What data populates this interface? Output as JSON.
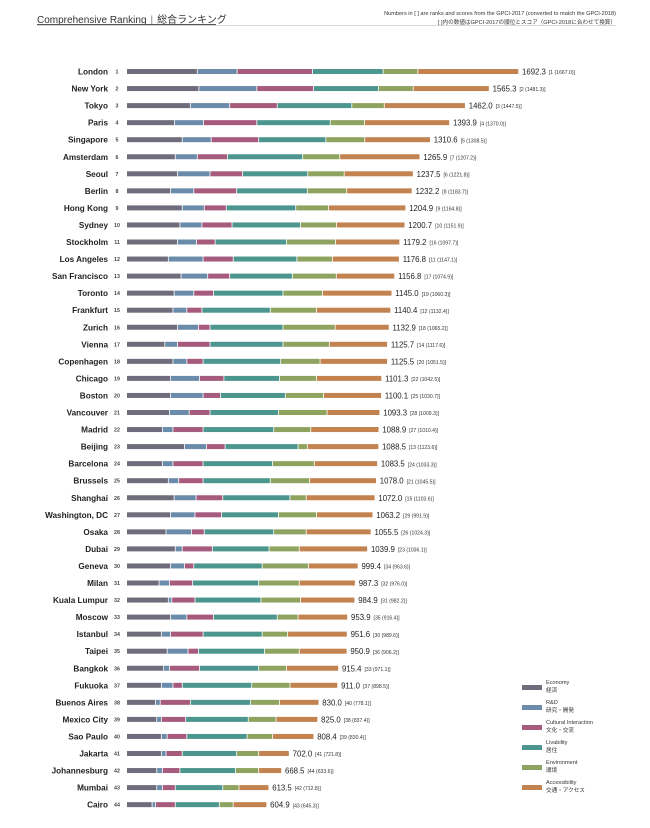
{
  "header": {
    "title_en": "Comprehensive Ranking",
    "title_jp": "総合ランキング",
    "note_line1": "Numbers in [ ] are ranks and scores from the GPCI-2017 (converted to match the GPCI-2018)",
    "note_line2": "[ ]内の数値はGPCI-2017の順位とスコア（GPCI-2018に合わせて換算）"
  },
  "chart_data": {
    "type": "bar",
    "stacked": true,
    "orientation": "horizontal",
    "xlim": [
      0,
      1800
    ],
    "grid": false,
    "legend_position": "bottom-right",
    "series": [
      {
        "name": "Economy 経済",
        "color": "#6f6d7b"
      },
      {
        "name": "R&D 研究・開発",
        "color": "#6a8ba9"
      },
      {
        "name": "Cultural Interaction 文化・交流",
        "color": "#a65a7c"
      },
      {
        "name": "Livability 居住",
        "color": "#4d968f"
      },
      {
        "name": "Environment 環境",
        "color": "#8fa360"
      },
      {
        "name": "Accessibility 交通・アクセス",
        "color": "#c28350"
      }
    ],
    "rows": [
      {
        "city": "London",
        "rank": "1",
        "score": "1692.3",
        "prev": "[1 (1667.0)]",
        "segments": [
          305,
          172,
          325,
          305,
          150,
          435
        ]
      },
      {
        "city": "New York",
        "rank": "2",
        "score": "1565.3",
        "prev": "[2 (1481.3)]",
        "segments": [
          312,
          250,
          245,
          280,
          150,
          328
        ]
      },
      {
        "city": "Tokyo",
        "rank": "3",
        "score": "1462.0",
        "prev": "[3 (1447.5)]",
        "segments": [
          275,
          170,
          205,
          322,
          140,
          350
        ]
      },
      {
        "city": "Paris",
        "rank": "4",
        "score": "1393.9",
        "prev": "[4 (1370.0)]",
        "segments": [
          207,
          125,
          230,
          317,
          148,
          367
        ]
      },
      {
        "city": "Singapore",
        "rank": "5",
        "score": "1310.6",
        "prev": "[5 (1308.5)]",
        "segments": [
          240,
          125,
          205,
          290,
          168,
          283
        ]
      },
      {
        "city": "Amsterdam",
        "rank": "6",
        "score": "1265.9",
        "prev": "[7 (1207.2)]",
        "segments": [
          210,
          95,
          130,
          325,
          160,
          346
        ]
      },
      {
        "city": "Seoul",
        "rank": "7",
        "score": "1237.5",
        "prev": "[6 (1221.8)]",
        "segments": [
          220,
          140,
          140,
          282,
          157,
          298
        ]
      },
      {
        "city": "Berlin",
        "rank": "8",
        "score": "1232.2",
        "prev": "[8 (1183.7)]",
        "segments": [
          190,
          100,
          185,
          305,
          170,
          282
        ]
      },
      {
        "city": "Hong Kong",
        "rank": "9",
        "score": "1204.9",
        "prev": "[9 (1164.8)]",
        "segments": [
          240,
          95,
          95,
          300,
          142,
          333
        ]
      },
      {
        "city": "Sydney",
        "rank": "10",
        "score": "1200.7",
        "prev": "[10 (1151.9)]",
        "segments": [
          230,
          95,
          130,
          295,
          156,
          295
        ]
      },
      {
        "city": "Stockholm",
        "rank": "11",
        "score": "1179.2",
        "prev": "[16 (1097.7)]",
        "segments": [
          220,
          82,
          80,
          308,
          212,
          277
        ]
      },
      {
        "city": "Los Angeles",
        "rank": "12",
        "score": "1176.8",
        "prev": "[11 (1147.1)]",
        "segments": [
          180,
          150,
          130,
          275,
          153,
          289
        ]
      },
      {
        "city": "San Francisco",
        "rank": "13",
        "score": "1156.8",
        "prev": "[17 (1074.9)]",
        "segments": [
          235,
          115,
          95,
          270,
          190,
          252
        ]
      },
      {
        "city": "Toronto",
        "rank": "14",
        "score": "1145.0",
        "prev": "[19 (1060.3)]",
        "segments": [
          205,
          85,
          85,
          300,
          170,
          300
        ]
      },
      {
        "city": "Frankfurt",
        "rank": "15",
        "score": "1140.4",
        "prev": "[12 (1132.4)]",
        "segments": [
          200,
          60,
          65,
          295,
          200,
          320
        ]
      },
      {
        "city": "Zurich",
        "rank": "16",
        "score": "1132.9",
        "prev": "[18 (1065.2)]",
        "segments": [
          220,
          90,
          50,
          315,
          225,
          233
        ]
      },
      {
        "city": "Vienna",
        "rank": "17",
        "score": "1125.7",
        "prev": "[14 (1117.6)]",
        "segments": [
          165,
          55,
          140,
          315,
          200,
          251
        ]
      },
      {
        "city": "Copenhagen",
        "rank": "18",
        "score": "1125.5",
        "prev": "[20 (1051.5)]",
        "segments": [
          200,
          60,
          70,
          335,
          170,
          291
        ]
      },
      {
        "city": "Chicago",
        "rank": "19",
        "score": "1101.3",
        "prev": "[22 (1042.5)]",
        "segments": [
          190,
          125,
          105,
          240,
          160,
          281
        ]
      },
      {
        "city": "Boston",
        "rank": "20",
        "score": "1100.1",
        "prev": "[25 (1030.7)]",
        "segments": [
          190,
          140,
          75,
          280,
          165,
          250
        ]
      },
      {
        "city": "Vancouver",
        "rank": "21",
        "score": "1093.3",
        "prev": "[28 (1009.3)]",
        "segments": [
          185,
          85,
          90,
          295,
          210,
          228
        ]
      },
      {
        "city": "Madrid",
        "rank": "22",
        "score": "1088.9",
        "prev": "[27 (1010.4)]",
        "segments": [
          155,
          45,
          130,
          305,
          160,
          294
        ]
      },
      {
        "city": "Beijing",
        "rank": "23",
        "score": "1088.5",
        "prev": "[13 (1123.6)]",
        "segments": [
          250,
          95,
          80,
          315,
          40,
          308
        ]
      },
      {
        "city": "Barcelona",
        "rank": "24",
        "score": "1083.5",
        "prev": "[24 (1033.3)]",
        "segments": [
          155,
          45,
          130,
          300,
          180,
          273
        ]
      },
      {
        "city": "Brussels",
        "rank": "25",
        "score": "1078.0",
        "prev": "[21 (1045.5)]",
        "segments": [
          180,
          45,
          105,
          290,
          170,
          288
        ]
      },
      {
        "city": "Shanghai",
        "rank": "26",
        "score": "1072.0",
        "prev": "[15 (1103.6)]",
        "segments": [
          205,
          95,
          115,
          290,
          70,
          297
        ]
      },
      {
        "city": "Washington, DC",
        "rank": "27",
        "score": "1063.2",
        "prev": "[29 (991.9)]",
        "segments": [
          190,
          105,
          115,
          245,
          165,
          243
        ]
      },
      {
        "city": "Osaka",
        "rank": "28",
        "score": "1055.5",
        "prev": "[26 (1024.3)]",
        "segments": [
          170,
          110,
          55,
          300,
          140,
          280
        ]
      },
      {
        "city": "Dubai",
        "rank": "29",
        "score": "1039.9",
        "prev": "[23 (1036.1)]",
        "segments": [
          210,
          30,
          130,
          245,
          130,
          295
        ]
      },
      {
        "city": "Geneva",
        "rank": "30",
        "score": "999.4",
        "prev": "[34 (963.6)]",
        "segments": [
          190,
          60,
          40,
          295,
          200,
          214
        ]
      },
      {
        "city": "Milan",
        "rank": "31",
        "score": "987.3",
        "prev": "[32 (976.0)]",
        "segments": [
          140,
          45,
          100,
          285,
          175,
          242
        ]
      },
      {
        "city": "Kuala Lumpur",
        "rank": "32",
        "score": "984.9",
        "prev": "[31 (982.2)]",
        "segments": [
          180,
          15,
          100,
          285,
          170,
          235
        ]
      },
      {
        "city": "Moscow",
        "rank": "33",
        "score": "953.9",
        "prev": "[35 (916.4)]",
        "segments": [
          190,
          70,
          115,
          275,
          90,
          214
        ]
      },
      {
        "city": "Istanbul",
        "rank": "34",
        "score": "951.6",
        "prev": "[30 (989.6)]",
        "segments": [
          150,
          40,
          140,
          255,
          110,
          257
        ]
      },
      {
        "city": "Taipei",
        "rank": "35",
        "score": "950.9",
        "prev": "[36 (906.2)]",
        "segments": [
          175,
          90,
          45,
          285,
          150,
          206
        ]
      },
      {
        "city": "Bangkok",
        "rank": "36",
        "score": "915.4",
        "prev": "[33 (971.1)]",
        "segments": [
          160,
          25,
          130,
          255,
          120,
          225
        ]
      },
      {
        "city": "Fukuoka",
        "rank": "37",
        "score": "911.0",
        "prev": "[37 (898.5)]",
        "segments": [
          150,
          50,
          40,
          300,
          165,
          206
        ]
      },
      {
        "city": "Buenos Aires",
        "rank": "38",
        "score": "830.0",
        "prev": "[40 (778.1)]",
        "segments": [
          125,
          20,
          130,
          260,
          125,
          170
        ]
      },
      {
        "city": "Mexico City",
        "rank": "39",
        "score": "825.0",
        "prev": "[38 (837.4)]",
        "segments": [
          130,
          20,
          105,
          270,
          120,
          180
        ]
      },
      {
        "city": "Sao Paulo",
        "rank": "40",
        "score": "808.4",
        "prev": "[39 (830.4)]",
        "segments": [
          150,
          25,
          85,
          260,
          110,
          178
        ]
      },
      {
        "city": "Jakarta",
        "rank": "41",
        "score": "702.0",
        "prev": "[41 (721.8)]",
        "segments": [
          150,
          20,
          70,
          235,
          95,
          132
        ]
      },
      {
        "city": "Johannesburg",
        "rank": "42",
        "score": "668.5",
        "prev": "[44 (633.6)]",
        "segments": [
          130,
          25,
          75,
          240,
          100,
          99
        ]
      },
      {
        "city": "Mumbai",
        "rank": "43",
        "score": "613.5",
        "prev": "[42 (712.8)]",
        "segments": [
          130,
          25,
          55,
          205,
          70,
          129
        ]
      },
      {
        "city": "Cairo",
        "rank": "44",
        "score": "604.9",
        "prev": "[43 (645.3)]",
        "segments": [
          110,
          15,
          85,
          190,
          60,
          145
        ]
      }
    ]
  },
  "legend": [
    {
      "en": "Economy",
      "jp": "経済",
      "color": "#6f6d7b"
    },
    {
      "en": "R&D",
      "jp": "研究・開発",
      "color": "#6a8ba9"
    },
    {
      "en": "Cultural Interaction",
      "jp": "文化・交流",
      "color": "#a65a7c"
    },
    {
      "en": "Livability",
      "jp": "居住",
      "color": "#4d968f"
    },
    {
      "en": "Environment",
      "jp": "環境",
      "color": "#8fa360"
    },
    {
      "en": "Accessibility",
      "jp": "交通・アクセス",
      "color": "#c28350"
    }
  ]
}
